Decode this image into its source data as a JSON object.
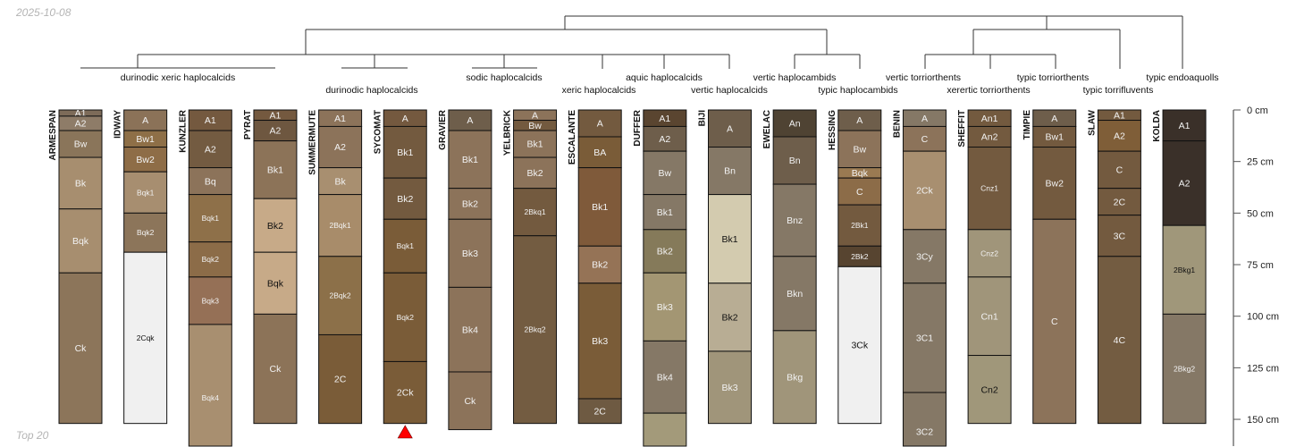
{
  "header": {
    "date": "2025-10-08"
  },
  "footer": {
    "note": "Top 20"
  },
  "chart_data": {
    "type": "soil-profile-sketch",
    "depth_axis": {
      "unit": "cm",
      "ticks": [
        0,
        25,
        50,
        75,
        100,
        125,
        150
      ],
      "tick_labels": [
        "0 cm",
        "25 cm",
        "50 cm",
        "75 cm",
        "100 cm",
        "125 cm",
        "150 cm"
      ]
    },
    "taxa": [
      {
        "label": "durinodic xeric haplocalcids",
        "row": 1
      },
      {
        "label": "durinodic haplocalcids",
        "row": 2
      },
      {
        "label": "sodic haplocalcids",
        "row": 1
      },
      {
        "label": "xeric haplocalcids",
        "row": 2
      },
      {
        "label": "aquic haplocalcids",
        "row": 1
      },
      {
        "label": "vertic haplocalcids",
        "row": 2
      },
      {
        "label": "vertic haplocambids",
        "row": 1
      },
      {
        "label": "typic haplocambids",
        "row": 2
      },
      {
        "label": "vertic torriorthents",
        "row": 1
      },
      {
        "label": "xerertic torriorthents",
        "row": 2
      },
      {
        "label": "typic torriorthents",
        "row": 1
      },
      {
        "label": "typic torrifluvents",
        "row": 2
      },
      {
        "label": "typic endoaquolls",
        "row": 1
      }
    ],
    "marker": {
      "profile": "SYCOMAT",
      "shape": "triangle",
      "color": "#ff0000"
    },
    "profiles": [
      {
        "name": "ARMESPAN",
        "horizons": [
          {
            "name": "A1",
            "top": 0,
            "bottom": 3,
            "color": "#7d6b59"
          },
          {
            "name": "A2",
            "top": 3,
            "bottom": 10,
            "color": "#8e7c68"
          },
          {
            "name": "Bw",
            "top": 10,
            "bottom": 23,
            "color": "#8a755a"
          },
          {
            "name": "Bk",
            "top": 23,
            "bottom": 48,
            "color": "#a78e6f"
          },
          {
            "name": "Bqk",
            "top": 48,
            "bottom": 79,
            "color": "#a78e6f"
          },
          {
            "name": "Ck",
            "top": 79,
            "bottom": 152,
            "color": "#8c755a"
          }
        ]
      },
      {
        "name": "IDWAY",
        "horizons": [
          {
            "name": "A",
            "top": 0,
            "bottom": 10,
            "color": "#8b7258"
          },
          {
            "name": "Bw1",
            "top": 10,
            "bottom": 18,
            "color": "#8e6f47"
          },
          {
            "name": "Bw2",
            "top": 18,
            "bottom": 30,
            "color": "#8e6d47"
          },
          {
            "name": "Bqk1",
            "top": 30,
            "bottom": 50,
            "color": "#a78e70"
          },
          {
            "name": "Bqk2",
            "top": 50,
            "bottom": 69,
            "color": "#8c755a"
          },
          {
            "name": "2Cqk",
            "top": 69,
            "bottom": 152,
            "color": "#f0f0f0"
          }
        ]
      },
      {
        "name": "KUNZLER",
        "horizons": [
          {
            "name": "A1",
            "top": 0,
            "bottom": 10,
            "color": "#74593f"
          },
          {
            "name": "A2",
            "top": 10,
            "bottom": 28,
            "color": "#735b41"
          },
          {
            "name": "Bq",
            "top": 28,
            "bottom": 41,
            "color": "#8c735a"
          },
          {
            "name": "Bqk1",
            "top": 41,
            "bottom": 64,
            "color": "#8e7049"
          },
          {
            "name": "Bqk2",
            "top": 64,
            "bottom": 81,
            "color": "#8c6c48"
          },
          {
            "name": "Bqk3",
            "top": 81,
            "bottom": 104,
            "color": "#957056"
          },
          {
            "name": "Bqk4",
            "top": 104,
            "bottom": 175,
            "color": "#a88f70"
          }
        ]
      },
      {
        "name": "PYRAT",
        "horizons": [
          {
            "name": "A1",
            "top": 0,
            "bottom": 5,
            "color": "#74593f"
          },
          {
            "name": "A2",
            "top": 5,
            "bottom": 15,
            "color": "#6e5740"
          },
          {
            "name": "Bk1",
            "top": 15,
            "bottom": 43,
            "color": "#8c7358"
          },
          {
            "name": "Bk2",
            "top": 43,
            "bottom": 69,
            "color": "#c7aa88"
          },
          {
            "name": "Bqk",
            "top": 69,
            "bottom": 99,
            "color": "#c7aa88"
          },
          {
            "name": "Ck",
            "top": 99,
            "bottom": 152,
            "color": "#8c7358"
          }
        ]
      },
      {
        "name": "SUMMERMUTE",
        "horizons": [
          {
            "name": "A1",
            "top": 0,
            "bottom": 8,
            "color": "#8c735a"
          },
          {
            "name": "A2",
            "top": 8,
            "bottom": 28,
            "color": "#8c735a"
          },
          {
            "name": "Bk",
            "top": 28,
            "bottom": 41,
            "color": "#a88f70"
          },
          {
            "name": "2Bqk1",
            "top": 41,
            "bottom": 71,
            "color": "#a88c6a"
          },
          {
            "name": "2Bqk2",
            "top": 71,
            "bottom": 109,
            "color": "#8c7049"
          },
          {
            "name": "2C",
            "top": 109,
            "bottom": 152,
            "color": "#7a5c38"
          }
        ]
      },
      {
        "name": "SYCOMAT",
        "horizons": [
          {
            "name": "A",
            "top": 0,
            "bottom": 8,
            "color": "#74593f"
          },
          {
            "name": "Bk1",
            "top": 8,
            "bottom": 33,
            "color": "#735a3f"
          },
          {
            "name": "Bk2",
            "top": 33,
            "bottom": 53,
            "color": "#735a3f"
          },
          {
            "name": "Bqk1",
            "top": 53,
            "bottom": 79,
            "color": "#7a5c38"
          },
          {
            "name": "Bqk2",
            "top": 79,
            "bottom": 122,
            "color": "#7a5c38"
          },
          {
            "name": "2Ck",
            "top": 122,
            "bottom": 152,
            "color": "#7a5c38"
          }
        ]
      },
      {
        "name": "GRAVIER",
        "horizons": [
          {
            "name": "A",
            "top": 0,
            "bottom": 10,
            "color": "#6e5e4b"
          },
          {
            "name": "Bk1",
            "top": 10,
            "bottom": 38,
            "color": "#8c735a"
          },
          {
            "name": "Bk2",
            "top": 38,
            "bottom": 53,
            "color": "#8c735a"
          },
          {
            "name": "Bk3",
            "top": 53,
            "bottom": 86,
            "color": "#8c735a"
          },
          {
            "name": "Bk4",
            "top": 86,
            "bottom": 127,
            "color": "#8c735a"
          },
          {
            "name": "Ck",
            "top": 127,
            "bottom": 155,
            "color": "#8c735a"
          }
        ]
      },
      {
        "name": "YELBRICK",
        "horizons": [
          {
            "name": "A",
            "top": 0,
            "bottom": 5,
            "color": "#8c735a"
          },
          {
            "name": "Bw",
            "top": 5,
            "bottom": 10,
            "color": "#735a3f"
          },
          {
            "name": "Bk1",
            "top": 10,
            "bottom": 23,
            "color": "#8c735a"
          },
          {
            "name": "Bk2",
            "top": 23,
            "bottom": 38,
            "color": "#8c735a"
          },
          {
            "name": "2Bkq1",
            "top": 38,
            "bottom": 61,
            "color": "#735a3f"
          },
          {
            "name": "2Bkq2",
            "top": 61,
            "bottom": 152,
            "color": "#735c41"
          }
        ]
      },
      {
        "name": "ESCALANTE",
        "horizons": [
          {
            "name": "A",
            "top": 0,
            "bottom": 13,
            "color": "#735a3f"
          },
          {
            "name": "BA",
            "top": 13,
            "bottom": 28,
            "color": "#7a5c38"
          },
          {
            "name": "Bk1",
            "top": 28,
            "bottom": 66,
            "color": "#7f5a3a"
          },
          {
            "name": "Bk2",
            "top": 66,
            "bottom": 84,
            "color": "#957356"
          },
          {
            "name": "Bk3",
            "top": 84,
            "bottom": 140,
            "color": "#7a5c38"
          },
          {
            "name": "2C",
            "top": 140,
            "bottom": 152,
            "color": "#6e5a42"
          }
        ]
      },
      {
        "name": "DUFFER",
        "horizons": [
          {
            "name": "A1",
            "top": 0,
            "bottom": 8,
            "color": "#5a4530"
          },
          {
            "name": "A2",
            "top": 8,
            "bottom": 20,
            "color": "#6e5e4b"
          },
          {
            "name": "Bw",
            "top": 20,
            "bottom": 41,
            "color": "#857866"
          },
          {
            "name": "Bk1",
            "top": 41,
            "bottom": 58,
            "color": "#857866"
          },
          {
            "name": "Bk2",
            "top": 58,
            "bottom": 79,
            "color": "#857a5a"
          },
          {
            "name": "Bk3",
            "top": 79,
            "bottom": 112,
            "color": "#a39673"
          },
          {
            "name": "Bk4",
            "top": 112,
            "bottom": 147,
            "color": "#857866"
          },
          {
            "name": "",
            "top": 147,
            "bottom": 175,
            "color": "#a39a7a"
          }
        ]
      },
      {
        "name": "BIJI",
        "horizons": [
          {
            "name": "A",
            "top": 0,
            "bottom": 18,
            "color": "#6e5e4b"
          },
          {
            "name": "Bn",
            "top": 18,
            "bottom": 41,
            "color": "#857866"
          },
          {
            "name": "Bk1",
            "top": 41,
            "bottom": 84,
            "color": "#d3cbaf"
          },
          {
            "name": "Bk2",
            "top": 84,
            "bottom": 117,
            "color": "#b8ad94"
          },
          {
            "name": "Bk3",
            "top": 117,
            "bottom": 152,
            "color": "#a0957a"
          }
        ]
      },
      {
        "name": "EWELAC",
        "horizons": [
          {
            "name": "An",
            "top": 0,
            "bottom": 13,
            "color": "#4f4333"
          },
          {
            "name": "Bn",
            "top": 13,
            "bottom": 36,
            "color": "#6e5e4b"
          },
          {
            "name": "Bnz",
            "top": 36,
            "bottom": 71,
            "color": "#857866"
          },
          {
            "name": "Bkn",
            "top": 71,
            "bottom": 107,
            "color": "#857866"
          },
          {
            "name": "Bkg",
            "top": 107,
            "bottom": 152,
            "color": "#a0957a"
          }
        ]
      },
      {
        "name": "HESSING",
        "horizons": [
          {
            "name": "A",
            "top": 0,
            "bottom": 10,
            "color": "#6e5e4b"
          },
          {
            "name": "Bw",
            "top": 10,
            "bottom": 28,
            "color": "#8c735a"
          },
          {
            "name": "Bqk",
            "top": 28,
            "bottom": 33,
            "color": "#9a7a52"
          },
          {
            "name": "C",
            "top": 33,
            "bottom": 46,
            "color": "#8c6c48"
          },
          {
            "name": "2Bk1",
            "top": 46,
            "bottom": 66,
            "color": "#735a3f"
          },
          {
            "name": "2Bk2",
            "top": 66,
            "bottom": 76,
            "color": "#574430"
          },
          {
            "name": "3Ck",
            "top": 76,
            "bottom": 152,
            "color": "#f0f0f0"
          }
        ]
      },
      {
        "name": "BENIN",
        "horizons": [
          {
            "name": "A",
            "top": 0,
            "bottom": 8,
            "color": "#857866"
          },
          {
            "name": "C",
            "top": 8,
            "bottom": 20,
            "color": "#8c735a"
          },
          {
            "name": "2Ck",
            "top": 20,
            "bottom": 58,
            "color": "#a88f70"
          },
          {
            "name": "3Cy",
            "top": 58,
            "bottom": 84,
            "color": "#857866"
          },
          {
            "name": "3C1",
            "top": 84,
            "bottom": 137,
            "color": "#857866"
          },
          {
            "name": "3C2",
            "top": 137,
            "bottom": 175,
            "color": "#857866"
          }
        ]
      },
      {
        "name": "SHEFFIT",
        "horizons": [
          {
            "name": "An1",
            "top": 0,
            "bottom": 8,
            "color": "#735a3f"
          },
          {
            "name": "An2",
            "top": 8,
            "bottom": 18,
            "color": "#735a3f"
          },
          {
            "name": "Cnz1",
            "top": 18,
            "bottom": 58,
            "color": "#735a3f"
          },
          {
            "name": "Cnz2",
            "top": 58,
            "bottom": 81,
            "color": "#a0957a"
          },
          {
            "name": "Cn1",
            "top": 81,
            "bottom": 119,
            "color": "#a0957a"
          },
          {
            "name": "Cn2",
            "top": 119,
            "bottom": 152,
            "color": "#a0977a"
          }
        ]
      },
      {
        "name": "TIMPIE",
        "horizons": [
          {
            "name": "A",
            "top": 0,
            "bottom": 8,
            "color": "#6e5e4b"
          },
          {
            "name": "Bw1",
            "top": 8,
            "bottom": 18,
            "color": "#735a3f"
          },
          {
            "name": "Bw2",
            "top": 18,
            "bottom": 53,
            "color": "#735a3f"
          },
          {
            "name": "C",
            "top": 53,
            "bottom": 152,
            "color": "#8c735a"
          }
        ]
      },
      {
        "name": "SLAW",
        "horizons": [
          {
            "name": "A1",
            "top": 0,
            "bottom": 5,
            "color": "#735a3f"
          },
          {
            "name": "A2",
            "top": 5,
            "bottom": 20,
            "color": "#7f5e38"
          },
          {
            "name": "C",
            "top": 20,
            "bottom": 38,
            "color": "#735a3f"
          },
          {
            "name": "2C",
            "top": 38,
            "bottom": 51,
            "color": "#735a3f"
          },
          {
            "name": "3C",
            "top": 51,
            "bottom": 71,
            "color": "#735a3f"
          },
          {
            "name": "4C",
            "top": 71,
            "bottom": 152,
            "color": "#735c41"
          }
        ]
      },
      {
        "name": "KOLDA",
        "horizons": [
          {
            "name": "A1",
            "top": 0,
            "bottom": 15,
            "color": "#3a3029"
          },
          {
            "name": "A2",
            "top": 15,
            "bottom": 56,
            "color": "#3a3029"
          },
          {
            "name": "2Bkg1",
            "top": 56,
            "bottom": 99,
            "color": "#a0977a"
          },
          {
            "name": "2Bkg2",
            "top": 99,
            "bottom": 152,
            "color": "#857866"
          }
        ]
      }
    ]
  }
}
